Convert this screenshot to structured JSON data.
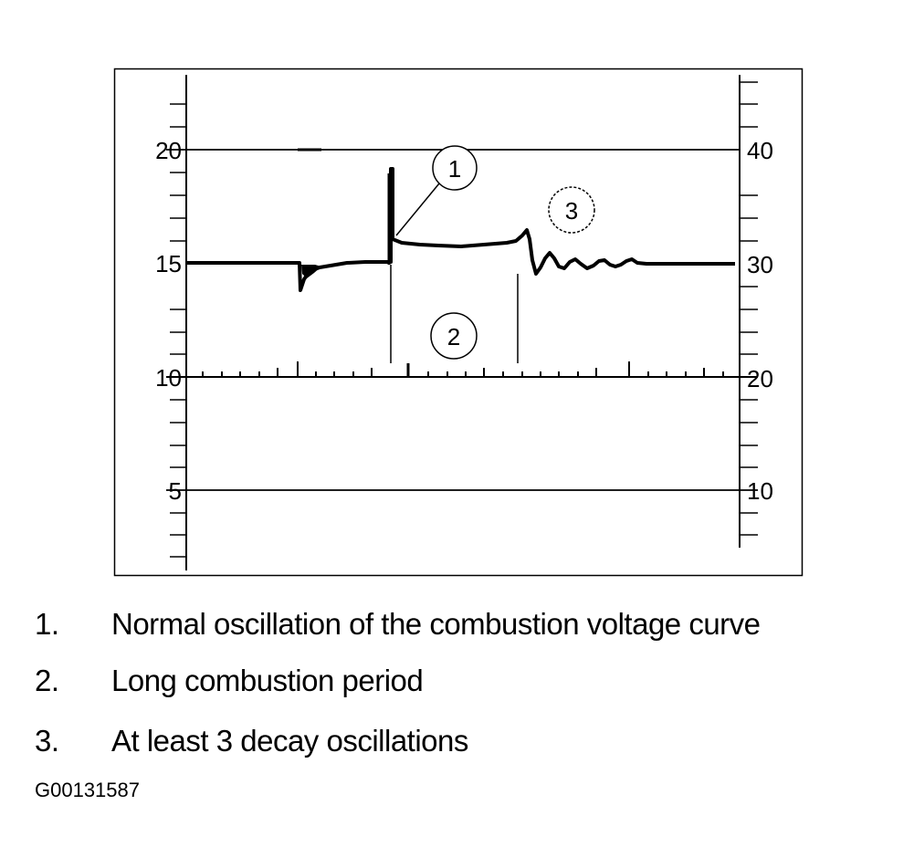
{
  "diagram": {
    "left_axis_labels": [
      "20",
      "15",
      "10",
      "5"
    ],
    "right_axis_labels": [
      "40",
      "30",
      "20",
      "10"
    ],
    "markers": [
      "1",
      "2",
      "3"
    ]
  },
  "legend": [
    {
      "number": "1.",
      "text": "Normal oscillation of the combustion voltage curve"
    },
    {
      "number": "2.",
      "text": "Long combustion period"
    },
    {
      "number": "3.",
      "text": "At least 3 decay oscillations"
    }
  ],
  "figure_code": "G00131587"
}
